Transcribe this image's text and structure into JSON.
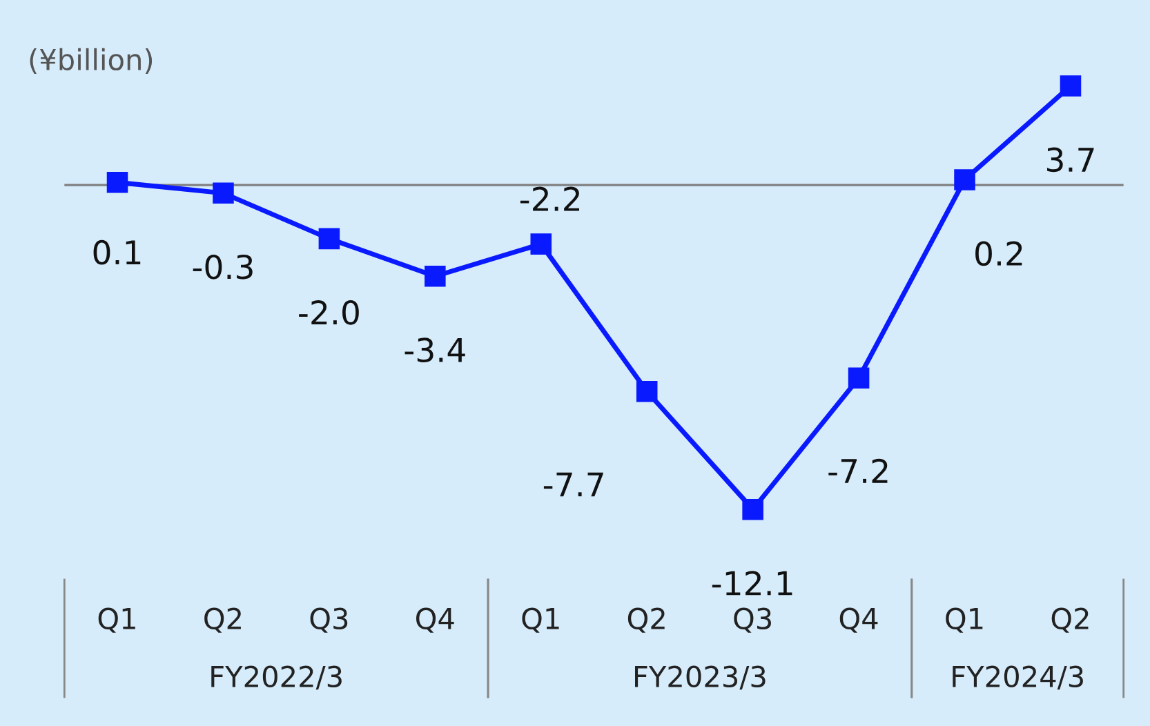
{
  "chart_data": {
    "type": "line",
    "ylabel": "(¥billion)",
    "categories": [
      "Q1",
      "Q2",
      "Q3",
      "Q4",
      "Q1",
      "Q2",
      "Q3",
      "Q4",
      "Q1",
      "Q2"
    ],
    "series": [
      {
        "color": "#0a1aff",
        "values": [
          0.1,
          -0.3,
          -2.0,
          -3.4,
          -2.2,
          -7.7,
          -12.1,
          -7.2,
          0.2,
          3.7
        ],
        "value_labels": [
          "0.1",
          "-0.3",
          "-2.0",
          "-3.4",
          "-2.2",
          "-7.7",
          "-12.1",
          "-7.2",
          "0.2",
          "3.7"
        ]
      }
    ],
    "tick_labels": "x",
    "marker": "square",
    "line_style": "solid",
    "legend": false,
    "ref_lines": [
      {
        "axis": "y",
        "value": 0,
        "color": "#808080"
      }
    ],
    "annotations": [
      "FY2022/3",
      "FY2023/3",
      "FY2024/3"
    ]
  }
}
